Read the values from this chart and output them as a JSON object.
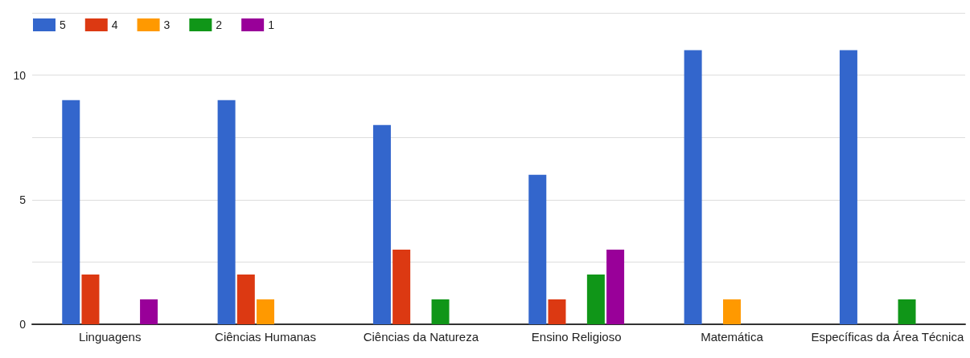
{
  "chart_data": {
    "type": "bar",
    "categories": [
      "Linguagens",
      "Ciências Humanas",
      "Ciências da Natureza",
      "Ensino Religioso",
      "Matemática",
      "Específicas da Área Técnica"
    ],
    "series": [
      {
        "name": "5",
        "color": "#3366cc",
        "values": [
          9,
          9,
          8,
          6,
          11,
          11
        ]
      },
      {
        "name": "4",
        "color": "#dc3912",
        "values": [
          2,
          2,
          3,
          1,
          0,
          0
        ]
      },
      {
        "name": "3",
        "color": "#ff9900",
        "values": [
          0,
          1,
          0,
          0,
          1,
          0
        ]
      },
      {
        "name": "2",
        "color": "#109618",
        "values": [
          0,
          0,
          1,
          2,
          0,
          1
        ]
      },
      {
        "name": "1",
        "color": "#990099",
        "values": [
          1,
          0,
          0,
          3,
          0,
          0
        ]
      }
    ],
    "ylim": [
      0,
      12.5
    ],
    "yticks": [
      0,
      {
        "value": 2.5,
        "label": null
      },
      5,
      {
        "value": 7.5,
        "label": null
      },
      10,
      {
        "value": 12.5,
        "label": null
      }
    ],
    "grid": true,
    "legend": "top left"
  }
}
